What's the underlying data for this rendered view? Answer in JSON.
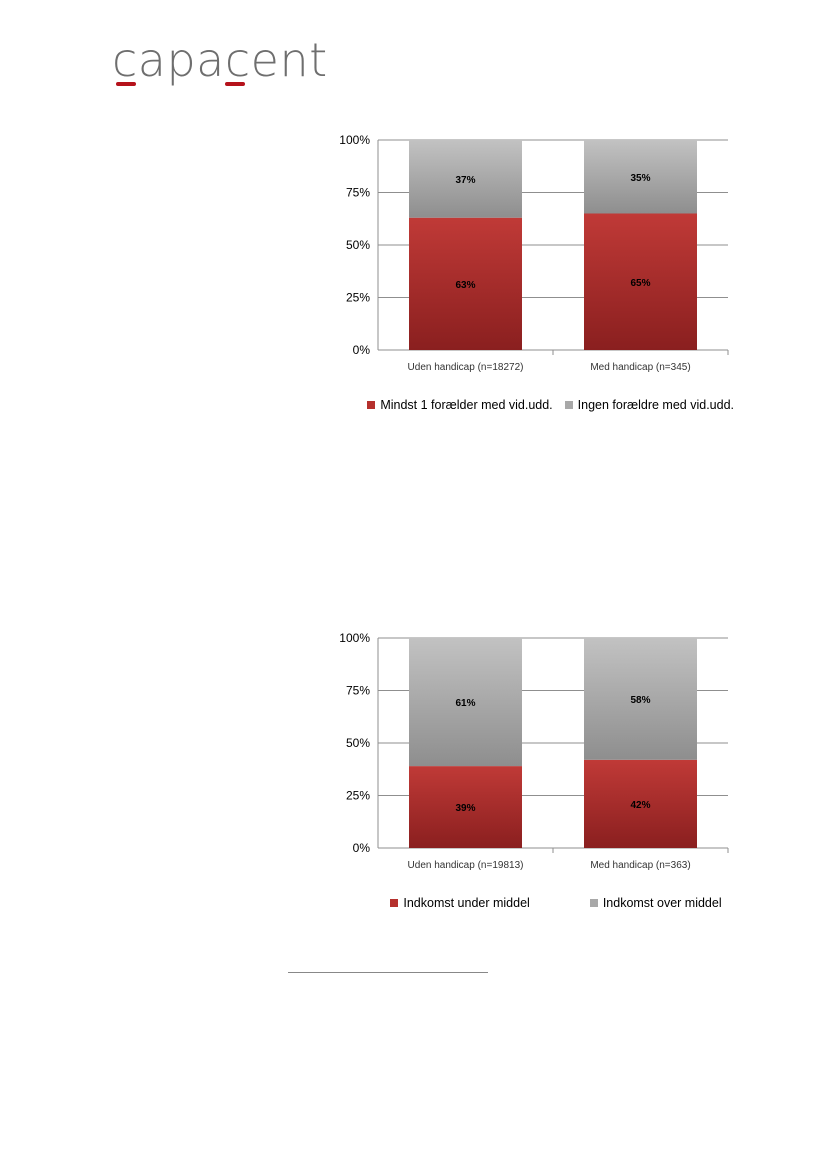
{
  "logo": {
    "text": "capacent",
    "accent_color": "#b5121b",
    "text_color": "#6e6e6e"
  },
  "colors": {
    "red_top": "#c03a37",
    "red_bottom": "#8a1f1f",
    "gray_top": "#c2c2c2",
    "gray_bottom": "#8e8e8e",
    "grid": "#8f8f8f",
    "axis_text": "#000000"
  },
  "chart_data": [
    {
      "type": "bar",
      "stacked": true,
      "categories": [
        "Uden handicap (n=18272)",
        "Med handicap (n=345)"
      ],
      "series": [
        {
          "name": "Mindst 1 forælder med vid.udd.",
          "values": [
            63,
            65
          ],
          "labels": [
            "63%",
            "65%"
          ],
          "color": "red"
        },
        {
          "name": "Ingen forældre med vid.udd.",
          "values": [
            37,
            35
          ],
          "labels": [
            "37%",
            "35%"
          ],
          "color": "gray"
        }
      ],
      "y_ticks": [
        "0%",
        "25%",
        "50%",
        "75%",
        "100%"
      ],
      "ylim": [
        0,
        100
      ],
      "grid": true,
      "legend_position": "bottom"
    },
    {
      "type": "bar",
      "stacked": true,
      "categories": [
        "Uden handicap (n=19813)",
        "Med handicap (n=363)"
      ],
      "series": [
        {
          "name": "Indkomst under middel",
          "values": [
            39,
            42
          ],
          "labels": [
            "39%",
            "42%"
          ],
          "color": "red"
        },
        {
          "name": "Indkomst over middel",
          "values": [
            61,
            58
          ],
          "labels": [
            "61%",
            "58%"
          ],
          "color": "gray"
        }
      ],
      "y_ticks": [
        "0%",
        "25%",
        "50%",
        "75%",
        "100%"
      ],
      "ylim": [
        0,
        100
      ],
      "grid": true,
      "legend_position": "bottom"
    }
  ]
}
